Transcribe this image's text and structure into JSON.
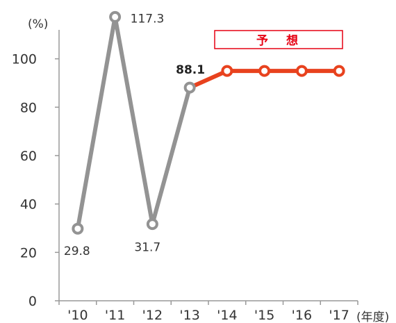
{
  "chart_data": {
    "type": "line",
    "ylabel": "(%)",
    "xunit": "(年度)",
    "categories": [
      "'10",
      "'11",
      "'12",
      "'13",
      "'14",
      "'15",
      "'16",
      "'17"
    ],
    "ylim": [
      0,
      120
    ],
    "yticks": [
      0,
      20,
      40,
      60,
      80,
      100
    ],
    "series": [
      {
        "name": "",
        "color": "#939393",
        "values": [
          29.8,
          117.3,
          31.7,
          88.1,
          null,
          null,
          null,
          null
        ]
      },
      {
        "name": "",
        "color": "#e8421e",
        "values": [
          null,
          null,
          null,
          88.1,
          95,
          95,
          95,
          95
        ]
      }
    ],
    "data_labels": [
      {
        "index": 0,
        "text": "29.8",
        "bold": false
      },
      {
        "index": 1,
        "text": "117.3",
        "bold": false
      },
      {
        "index": 2,
        "text": "31.7",
        "bold": false
      },
      {
        "index": 3,
        "text": "88.1",
        "bold": true
      }
    ],
    "forecast_label": "予 想",
    "forecast_color": "#e60012",
    "grid": false
  }
}
